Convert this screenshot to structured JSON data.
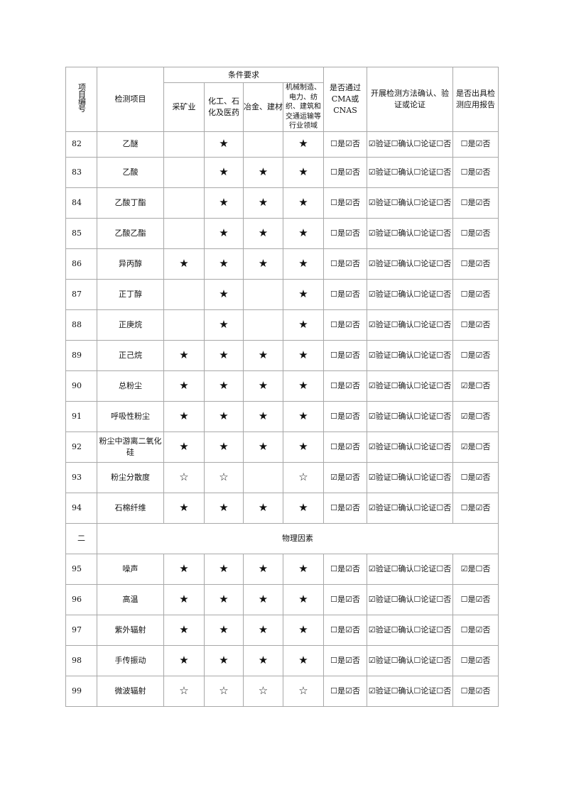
{
  "header": {
    "id": "项目编号",
    "item": "检测项目",
    "conditions": "条件要求",
    "cols": [
      "采矿业",
      "化工、石化及医药",
      "冶金、建材",
      "机械制造、电力、纺织、建筑和交通运输等行业领域"
    ],
    "cma": "是否通过CMA或CNAS",
    "method": "开展检测方法确认、验证或论证",
    "report": "是否出具检测应用报告"
  },
  "rows": [
    {
      "id": "82",
      "name": "乙醚",
      "s": [
        "",
        "★",
        "",
        "★"
      ],
      "cma": "☐是☑否",
      "method": "☑验证☐确认☐论证☐否",
      "report": "☐是☑否"
    },
    {
      "id": "83",
      "name": "乙酸",
      "s": [
        "",
        "★",
        "★",
        "★"
      ],
      "cma": "☐是☑否",
      "method": "☑验证☐确认☐论证☐否",
      "report": "☐是☑否"
    },
    {
      "id": "84",
      "name": "乙酸丁酯",
      "s": [
        "",
        "★",
        "★",
        "★"
      ],
      "cma": "☐是☑否",
      "method": "☑验证☐确认☐论证☐否",
      "report": "☐是☑否"
    },
    {
      "id": "85",
      "name": "乙酸乙酯",
      "s": [
        "",
        "★",
        "★",
        "★"
      ],
      "cma": "☐是☑否",
      "method": "☑验证☐确认☐论证☐否",
      "report": "☐是☑否"
    },
    {
      "id": "86",
      "name": "异丙醇",
      "s": [
        "★",
        "★",
        "★",
        "★"
      ],
      "cma": "☐是☑否",
      "method": "☑验证☐确认☐论证☐否",
      "report": "☐是☑否"
    },
    {
      "id": "87",
      "name": "正丁醇",
      "s": [
        "",
        "★",
        "",
        "★"
      ],
      "cma": "☐是☑否",
      "method": "☑验证☐确认☐论证☐否",
      "report": "☐是☑否"
    },
    {
      "id": "88",
      "name": "正庚烷",
      "s": [
        "",
        "★",
        "",
        "★"
      ],
      "cma": "☐是☑否",
      "method": "☑验证☐确认☐论证☐否",
      "report": "☐是☑否"
    },
    {
      "id": "89",
      "name": "正己烷",
      "s": [
        "★",
        "★",
        "★",
        "★"
      ],
      "cma": "☐是☑否",
      "method": "☑验证☐确认☐论证☐否",
      "report": "☐是☑否"
    },
    {
      "id": "90",
      "name": "总粉尘",
      "s": [
        "★",
        "★",
        "★",
        "★"
      ],
      "cma": "☐是☑否",
      "method": "☑验证☐确认☐论证☐否",
      "report": "☑是☐否"
    },
    {
      "id": "91",
      "name": "呼吸性粉尘",
      "s": [
        "★",
        "★",
        "★",
        "★"
      ],
      "cma": "☐是☑否",
      "method": "☑验证☐确认☐论证☐否",
      "report": "☑是☐否"
    },
    {
      "id": "92",
      "name": "粉尘中游离二氧化硅",
      "s": [
        "★",
        "★",
        "★",
        "★"
      ],
      "cma": "☐是☑否",
      "method": "☑验证☐确认☐论证☐否",
      "report": "☑是☐否"
    },
    {
      "id": "93",
      "name": "粉尘分散度",
      "s": [
        "☆",
        "☆",
        "",
        "☆"
      ],
      "cma": "☑是☑否",
      "method": "☑验证☐确认☐论证☐否",
      "report": "☐是☑否"
    },
    {
      "id": "94",
      "name": "石棉纤维",
      "s": [
        "★",
        "★",
        "★",
        "★"
      ],
      "cma": "☐是☑否",
      "method": "☑验证☐确认☐论证☐否",
      "report": "☐是☑否"
    },
    {
      "section": "二",
      "title": "物理因素"
    },
    {
      "id": "95",
      "name": "噪声",
      "s": [
        "★",
        "★",
        "★",
        "★"
      ],
      "cma": "☐是☑否",
      "method": "☑验证☐确认☐论证☐否",
      "report": "☑是☐否"
    },
    {
      "id": "96",
      "name": "高温",
      "s": [
        "★",
        "★",
        "★",
        "★"
      ],
      "cma": "☐是☑否",
      "method": "☑验证☐确认☐论证☐否",
      "report": "☐是☑否"
    },
    {
      "id": "97",
      "name": "紫外辐射",
      "s": [
        "★",
        "★",
        "★",
        "★"
      ],
      "cma": "☐是☑否",
      "method": "☑验证☐确认☐论证☐否",
      "report": "☐是☑否"
    },
    {
      "id": "98",
      "name": "手传振动",
      "s": [
        "★",
        "★",
        "★",
        "★"
      ],
      "cma": "☐是☑否",
      "method": "☑验证☐确认☐论证☐否",
      "report": "☐是☑否"
    },
    {
      "id": "99",
      "name": "微波辐射",
      "s": [
        "☆",
        "☆",
        "☆",
        "☆"
      ],
      "cma": "☐是☑否",
      "method": "☑验证☐确认☐论证☐否",
      "report": "☐是☑否"
    }
  ]
}
